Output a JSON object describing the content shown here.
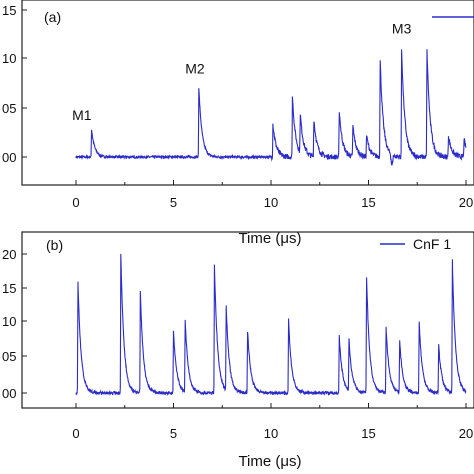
{
  "chart_data": [
    {
      "panel_label": "(a)",
      "type": "line",
      "xlabel": "Time (μs)",
      "x_ticks": [
        "0",
        "5",
        "10",
        "15",
        "20"
      ],
      "y_ticks": [
        "00",
        "05",
        "10",
        "15"
      ],
      "xlim": [
        -1.4,
        20.3
      ],
      "ylim": [
        -0.38,
        1.55
      ],
      "legend": {
        "text": "",
        "placement": "top-right"
      },
      "annotations": [
        {
          "text": "M1",
          "x": 0.3,
          "y": 0.38
        },
        {
          "text": "M2",
          "x": 6.1,
          "y": 0.85
        },
        {
          "text": "M3",
          "x": 16.7,
          "y": 1.26
        }
      ],
      "baseline": 0.0,
      "noise": 0.012,
      "series": [
        {
          "color": "#2b2bc8",
          "pulses": [
            [
              0.8,
              0.28
            ],
            [
              6.3,
              0.71
            ],
            [
              10.1,
              0.34
            ],
            [
              11.1,
              0.62
            ],
            [
              11.5,
              0.4
            ],
            [
              12.2,
              0.38
            ],
            [
              13.5,
              0.48
            ],
            [
              14.2,
              0.31
            ],
            [
              14.9,
              0.22
            ],
            [
              15.6,
              0.98
            ],
            [
              16.7,
              1.1
            ],
            [
              18.0,
              1.08
            ],
            [
              19.1,
              0.22
            ],
            [
              19.9,
              0.18
            ]
          ],
          "dips": [
            [
              16.2,
              -0.12
            ]
          ],
          "noisy_from": 10.0
        }
      ]
    },
    {
      "panel_label": "(b)",
      "type": "line",
      "xlabel": "Time (μs)",
      "x_ticks": [
        "0",
        "5",
        "10",
        "15",
        "20"
      ],
      "y_ticks": [
        "00",
        "05",
        "10",
        "15",
        "20"
      ],
      "xlim": [
        -1.4,
        20.3
      ],
      "ylim": [
        -0.1,
        2.2
      ],
      "legend": {
        "text": "CnF 1",
        "placement": "top-right"
      },
      "annotations": [],
      "baseline": 0.0,
      "noise": 0.01,
      "series": [
        {
          "name": "CnF 1",
          "color": "#2b2bc8",
          "pulses": [
            [
              0.1,
              1.6
            ],
            [
              2.3,
              2.0
            ],
            [
              3.3,
              1.45
            ],
            [
              5.0,
              0.9
            ],
            [
              5.6,
              1.02
            ],
            [
              7.1,
              1.85
            ],
            [
              7.7,
              1.23
            ],
            [
              8.8,
              0.9
            ],
            [
              10.9,
              1.05
            ],
            [
              13.5,
              0.82
            ],
            [
              14.0,
              0.73
            ],
            [
              14.9,
              1.68
            ],
            [
              15.9,
              0.95
            ],
            [
              16.6,
              0.73
            ],
            [
              17.6,
              1.02
            ],
            [
              18.6,
              0.68
            ],
            [
              19.3,
              1.9
            ]
          ],
          "dips": [],
          "noisy_from": 0.0
        }
      ]
    }
  ]
}
